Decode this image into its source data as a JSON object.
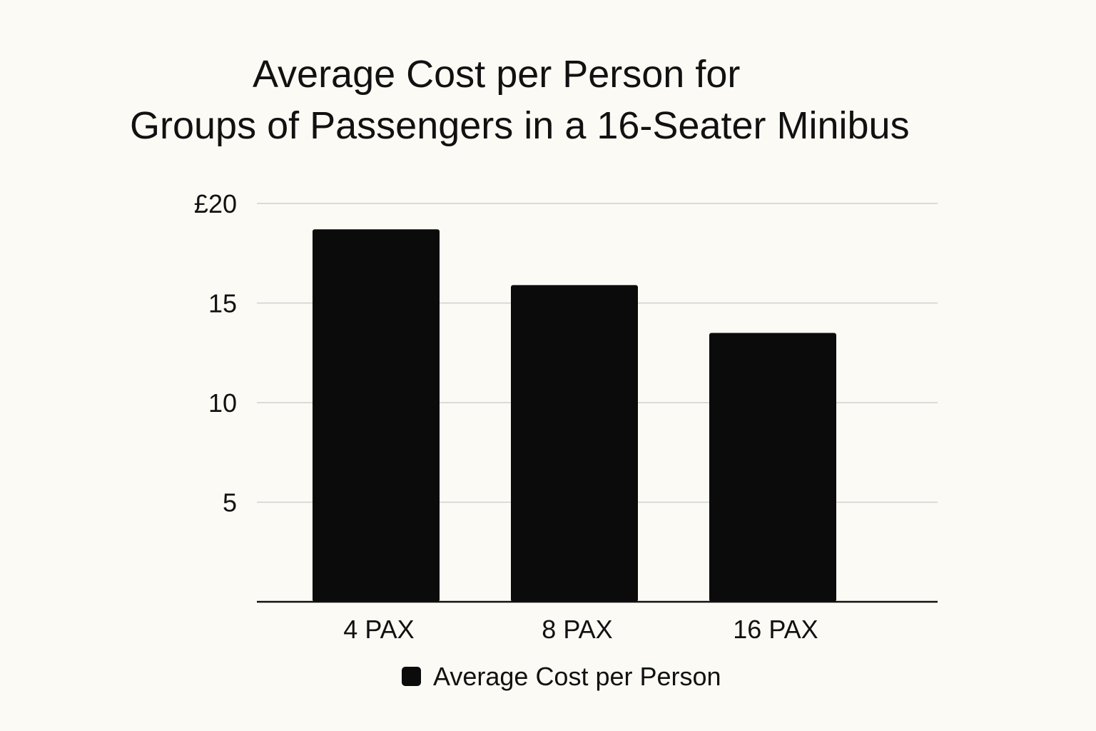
{
  "chart_data": {
    "type": "bar",
    "title_lines": [
      "Average Cost per Person for",
      "Groups of Passengers in a 16-Seater Minibus"
    ],
    "categories": [
      "4 PAX",
      "8 PAX",
      "16 PAX"
    ],
    "series": [
      {
        "name": "Average Cost per Person",
        "values": [
          18.7,
          15.9,
          13.5
        ],
        "color": "#0b0b0b"
      }
    ],
    "y_ticks": [
      {
        "value": 5,
        "label": "5"
      },
      {
        "value": 10,
        "label": "10"
      },
      {
        "value": 15,
        "label": "15"
      },
      {
        "value": 20,
        "label": "£20"
      }
    ],
    "ylim": [
      0,
      20
    ],
    "grid": true,
    "legend_position": "bottom-center",
    "xlabel": "",
    "ylabel": ""
  }
}
